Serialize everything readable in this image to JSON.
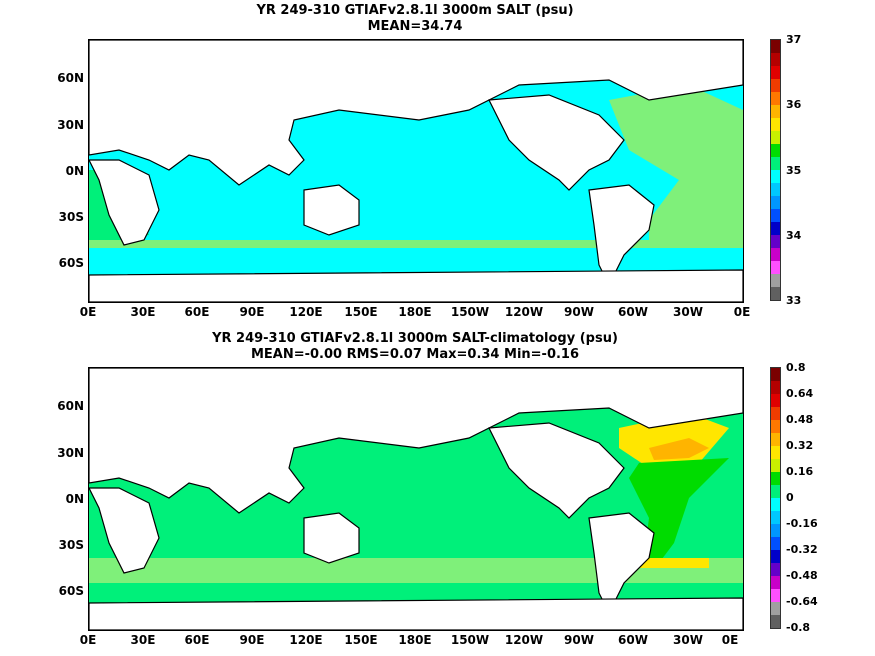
{
  "panel1": {
    "title_line1": "YR 249-310 GTIAFv2.8.1l 3000m SALT (psu)",
    "title_line2": "MEAN=34.74",
    "y_ticks": [
      "60N",
      "30N",
      "0N",
      "30S",
      "60S"
    ],
    "x_ticks": [
      "0E",
      "30E",
      "60E",
      "90E",
      "120E",
      "150E",
      "180E",
      "150W",
      "120W",
      "90W",
      "60W",
      "30W",
      "0E"
    ],
    "colorbar": {
      "labels": [
        "37",
        "36",
        "35",
        "34",
        "33"
      ],
      "colors": [
        "#7a0000",
        "#b40000",
        "#e00000",
        "#f03c00",
        "#ff7800",
        "#ffb400",
        "#ffe600",
        "#c8f000",
        "#00dc00",
        "#00f07a",
        "#00ffff",
        "#00c8ff",
        "#0096ff",
        "#0050ff",
        "#0000c8",
        "#6400c8",
        "#c800c8",
        "#ff50ff",
        "#a0a0a0",
        "#606060"
      ]
    }
  },
  "panel2": {
    "title_line1": "YR 249-310 GTIAFv2.8.1l 3000m SALT-climatology (psu)",
    "title_line2": "MEAN=-0.00   RMS=0.07   Max=0.34   Min=-0.16",
    "y_ticks": [
      "60N",
      "30N",
      "0N",
      "30S",
      "60S"
    ],
    "x_ticks": [
      "0E",
      "30E",
      "60E",
      "90E",
      "120E",
      "150E",
      "180E",
      "150W",
      "120W",
      "90W",
      "60W",
      "30W",
      "0E"
    ],
    "colorbar": {
      "labels": [
        "0.8",
        "0.64",
        "0.48",
        "0.32",
        "0.16",
        "0",
        "-0.16",
        "-0.32",
        "-0.48",
        "-0.64",
        "-0.8"
      ],
      "colors": [
        "#7a0000",
        "#b40000",
        "#e00000",
        "#f03c00",
        "#ff7800",
        "#ffb400",
        "#ffe600",
        "#c8f000",
        "#00dc00",
        "#00f07a",
        "#00ffff",
        "#00c8ff",
        "#0096ff",
        "#0050ff",
        "#0000c8",
        "#6400c8",
        "#c800c8",
        "#ff50ff",
        "#a0a0a0",
        "#606060"
      ]
    }
  },
  "colors": {
    "ocean_fresh": "#00ffff",
    "ocean_mid": "#00f07a",
    "ocean_salty": "#7ff07a",
    "anomaly_zero": "#00f07a",
    "anomaly_low": "#7ff07a",
    "anomaly_mid": "#00dc00",
    "anomaly_high": "#ffe600",
    "anomaly_max": "#ffb400",
    "land": "#ffffff"
  }
}
